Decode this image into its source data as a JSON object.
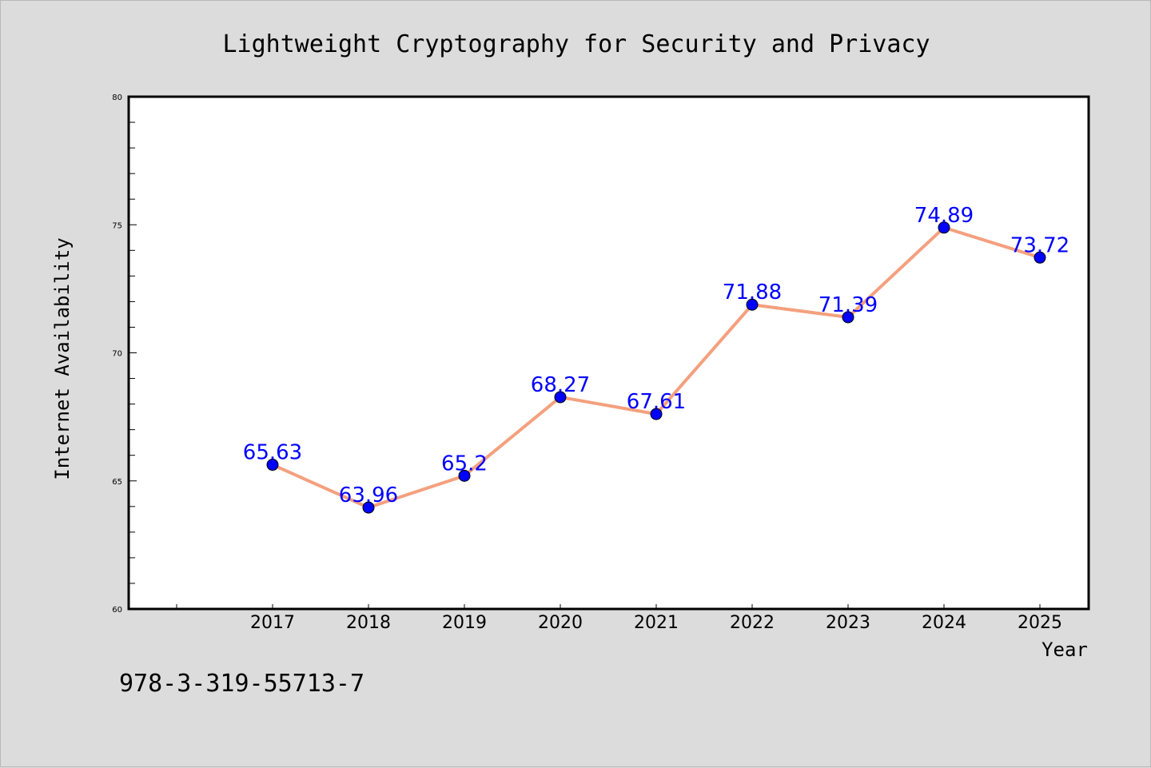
{
  "chart_data": {
    "type": "line",
    "title": "Lightweight Cryptography for Security and Privacy",
    "xlabel": "Year",
    "ylabel": "Internet Availability",
    "categories": [
      "2017",
      "2018",
      "2019",
      "2020",
      "2021",
      "2022",
      "2023",
      "2024",
      "2025"
    ],
    "series": [
      {
        "values": [
          65.63,
          63.96,
          65.2,
          68.27,
          67.61,
          71.88,
          71.39,
          74.89,
          73.72
        ],
        "labels": [
          "65.63",
          "63.96",
          "65.2",
          "68.27",
          "67.61",
          "71.88",
          "71.39",
          "74.89",
          "73.72"
        ],
        "line_color": "#f4a07e",
        "marker_color": "#0000ff"
      }
    ],
    "ylim": [
      60,
      80
    ],
    "yticks": [
      "60",
      "65",
      "70",
      "75",
      "80"
    ],
    "grid": false,
    "legend": "none"
  },
  "footer": {
    "isbn": "978-3-319-55713-7"
  },
  "colors": {
    "background": "#dcdcdc",
    "plot_background": "#ffffff",
    "data_label": "#0000ff"
  }
}
